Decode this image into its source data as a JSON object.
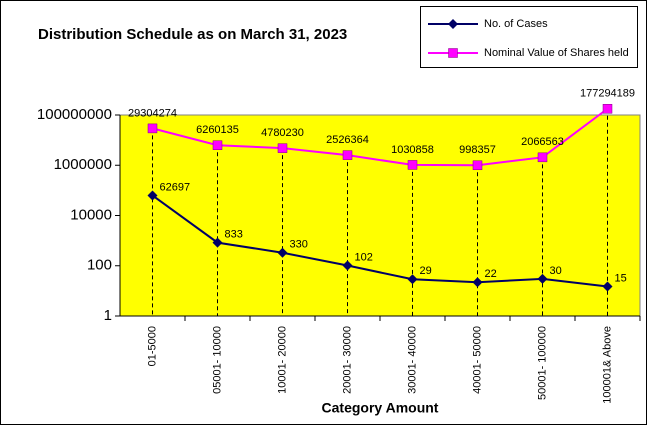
{
  "chart_data": {
    "type": "line",
    "title": "Distribution Schedule as on March 31, 2023",
    "x_label": "Category Amount",
    "categories": [
      "01-5000",
      "05001- 10000",
      "10001- 20000",
      "20001- 30000",
      "30001- 40000",
      "40001- 50000",
      "50001- 100000",
      "100001& Above"
    ],
    "series": [
      {
        "name": "No. of Cases",
        "color": "#000066",
        "marker": "diamond",
        "values": [
          62697,
          833,
          330,
          102,
          29,
          22,
          30,
          15
        ]
      },
      {
        "name": "Nominal Value of Shares held",
        "color": "#ff00ff",
        "marker": "square",
        "values": [
          29304274,
          6260135,
          4780230,
          2526364,
          1030858,
          998357,
          2066563,
          177294189
        ]
      }
    ],
    "log_y": true,
    "ylim": [
      1,
      100000000
    ],
    "yticks": [
      1,
      100,
      10000,
      1000000,
      100000000
    ],
    "drop_lines": true,
    "plot_background": "#ffff00",
    "legend": "top-right"
  }
}
